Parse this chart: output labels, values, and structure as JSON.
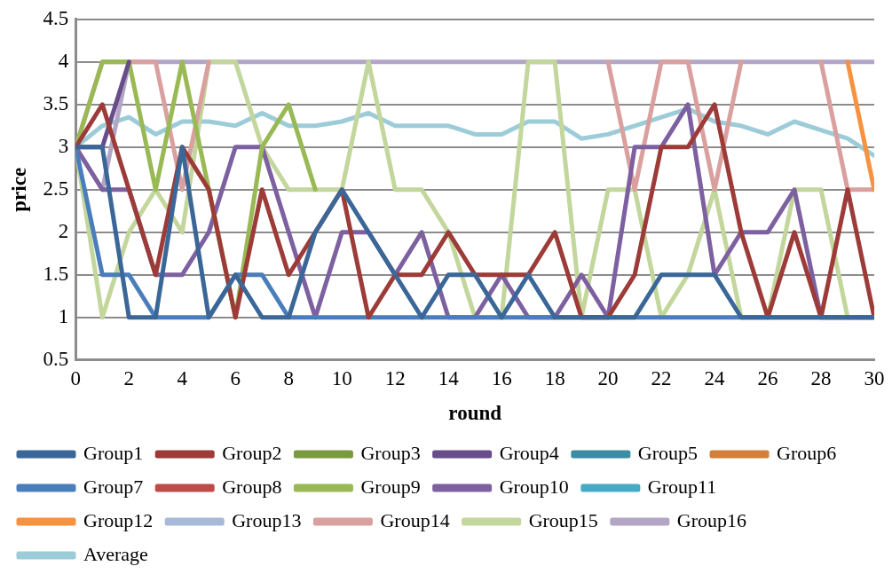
{
  "chart_data": {
    "type": "line",
    "xlabel": "round",
    "ylabel": "price",
    "x": [
      0,
      1,
      2,
      3,
      4,
      5,
      6,
      7,
      8,
      9,
      10,
      11,
      12,
      13,
      14,
      15,
      16,
      17,
      18,
      19,
      20,
      21,
      22,
      23,
      24,
      25,
      26,
      27,
      28,
      29,
      30
    ],
    "xlim": [
      0,
      30
    ],
    "xticks": [
      0,
      2,
      4,
      6,
      8,
      10,
      12,
      14,
      16,
      18,
      20,
      22,
      24,
      26,
      28,
      30
    ],
    "ylim": [
      0.5,
      4.5
    ],
    "yticks": [
      0.5,
      1,
      1.5,
      2,
      2.5,
      3,
      3.5,
      4,
      4.5
    ],
    "grid": "y",
    "legend": "bottom",
    "marker": "none",
    "line_style": "solid",
    "series": [
      {
        "name": "Group1",
        "color": "#3a6798",
        "values": [
          3,
          3,
          1,
          1,
          3,
          1,
          1.5,
          1,
          1,
          2,
          2.5,
          2,
          1.5,
          1,
          1.5,
          1.5,
          1,
          1.5,
          1,
          1,
          1,
          1,
          1.5,
          1.5,
          1.5,
          1,
          1,
          1,
          1,
          1,
          1
        ]
      },
      {
        "name": "Group2",
        "color": "#9c3b38",
        "values": [
          3,
          3.5,
          2.5,
          1.5,
          3,
          2.5,
          1,
          2.5,
          1.5,
          2,
          2.5,
          1,
          1.5,
          1.5,
          2,
          1.5,
          1.5,
          1.5,
          2,
          1,
          1,
          1.5,
          3,
          3,
          3.5,
          2,
          1,
          2,
          1,
          2.5,
          1
        ]
      },
      {
        "name": "Group3",
        "color": "#7a9a3d",
        "values": [
          null,
          null,
          null,
          null,
          null,
          null,
          null,
          null,
          null,
          null,
          null,
          null,
          null,
          null,
          null,
          null,
          null,
          null,
          null,
          null,
          null,
          null,
          null,
          null,
          null,
          null,
          null,
          null,
          null,
          null,
          null
        ]
      },
      {
        "name": "Group4",
        "color": "#674e8a",
        "values": [
          3,
          3,
          4,
          null,
          null,
          null,
          null,
          null,
          null,
          null,
          null,
          null,
          null,
          null,
          null,
          null,
          null,
          null,
          null,
          null,
          null,
          null,
          null,
          null,
          null,
          null,
          null,
          null,
          null,
          null,
          null
        ]
      },
      {
        "name": "Group5",
        "color": "#3c8da3",
        "values": [
          null,
          null,
          null,
          null,
          null,
          null,
          null,
          null,
          null,
          null,
          null,
          null,
          null,
          null,
          null,
          null,
          null,
          null,
          null,
          null,
          null,
          null,
          null,
          null,
          null,
          null,
          null,
          null,
          null,
          null,
          null
        ]
      },
      {
        "name": "Group6",
        "color": "#d3803a",
        "values": [
          null,
          null,
          null,
          null,
          null,
          null,
          null,
          null,
          null,
          null,
          null,
          null,
          null,
          null,
          null,
          null,
          null,
          null,
          null,
          null,
          null,
          null,
          null,
          null,
          null,
          null,
          null,
          null,
          null,
          null,
          null
        ]
      },
      {
        "name": "Group7",
        "color": "#4a7ebb",
        "values": [
          3,
          1.5,
          1.5,
          1,
          1,
          1,
          1.5,
          1.5,
          1,
          1,
          1,
          1,
          1,
          1,
          1,
          1,
          1,
          1,
          1,
          1,
          1,
          1,
          1,
          1,
          1,
          1,
          1,
          1,
          1,
          1,
          1
        ]
      },
      {
        "name": "Group8",
        "color": "#be4b48",
        "values": [
          null,
          null,
          null,
          null,
          null,
          null,
          null,
          null,
          null,
          null,
          null,
          null,
          null,
          null,
          null,
          null,
          null,
          null,
          null,
          null,
          null,
          null,
          null,
          null,
          null,
          null,
          null,
          null,
          null,
          null,
          null
        ]
      },
      {
        "name": "Group9",
        "color": "#98b954",
        "values": [
          3,
          4,
          4,
          2.5,
          4,
          2.5,
          1,
          3,
          3.5,
          2.5,
          null,
          null,
          null,
          null,
          null,
          null,
          null,
          null,
          null,
          null,
          null,
          null,
          null,
          null,
          null,
          null,
          null,
          null,
          null,
          null,
          null
        ]
      },
      {
        "name": "Group10",
        "color": "#7d60a0",
        "values": [
          3,
          2.5,
          2.5,
          1.5,
          1.5,
          2,
          3,
          3,
          2,
          1,
          2,
          2,
          1.5,
          2,
          1,
          1,
          1.5,
          1,
          1,
          1.5,
          1,
          3,
          3,
          3.5,
          1.5,
          2,
          2,
          2.5,
          1,
          1,
          1
        ]
      },
      {
        "name": "Group11",
        "color": "#46aac5",
        "values": [
          null,
          null,
          null,
          null,
          null,
          null,
          null,
          null,
          null,
          null,
          null,
          null,
          null,
          null,
          null,
          null,
          null,
          null,
          null,
          null,
          null,
          null,
          null,
          null,
          null,
          null,
          null,
          null,
          null,
          null,
          null
        ]
      },
      {
        "name": "Group12",
        "color": "#f69240",
        "values": [
          null,
          null,
          null,
          null,
          null,
          null,
          null,
          null,
          null,
          null,
          null,
          null,
          null,
          null,
          null,
          null,
          null,
          null,
          null,
          null,
          null,
          null,
          null,
          null,
          null,
          null,
          null,
          null,
          null,
          4,
          2.5
        ]
      },
      {
        "name": "Group13",
        "color": "#a7b9d8",
        "values": [
          null,
          null,
          null,
          null,
          null,
          null,
          null,
          null,
          null,
          null,
          null,
          null,
          null,
          null,
          null,
          null,
          null,
          null,
          null,
          null,
          null,
          null,
          null,
          null,
          null,
          null,
          null,
          null,
          null,
          null,
          null
        ]
      },
      {
        "name": "Group14",
        "color": "#d9a09f",
        "values": [
          3,
          4,
          4,
          4,
          2.5,
          4,
          null,
          null,
          null,
          null,
          null,
          null,
          null,
          null,
          null,
          null,
          null,
          null,
          null,
          null,
          4,
          2.5,
          4,
          4,
          2.5,
          4,
          null,
          null,
          4,
          2.5,
          2.5
        ]
      },
      {
        "name": "Group15",
        "color": "#c3d69b",
        "values": [
          3,
          1,
          2,
          2.5,
          2,
          4,
          4,
          3,
          2.5,
          2.5,
          2.5,
          4,
          2.5,
          2.5,
          2,
          1,
          1,
          4,
          4,
          1,
          2.5,
          2.5,
          1,
          1.5,
          2.5,
          1,
          1,
          2.5,
          2.5,
          1,
          1
        ]
      },
      {
        "name": "Group16",
        "color": "#b3a5c6",
        "values": [
          3,
          2.5,
          4,
          4,
          4,
          4,
          4,
          4,
          4,
          4,
          4,
          4,
          4,
          4,
          4,
          4,
          4,
          4,
          4,
          4,
          4,
          4,
          4,
          4,
          4,
          4,
          4,
          4,
          4,
          4,
          4
        ]
      },
      {
        "name": "Average",
        "color": "#9dccd9",
        "values": [
          3,
          3.25,
          3.35,
          3.15,
          3.3,
          3.3,
          3.25,
          3.4,
          3.25,
          3.25,
          3.3,
          3.4,
          3.25,
          3.25,
          3.25,
          3.15,
          3.15,
          3.3,
          3.3,
          3.1,
          3.15,
          3.25,
          3.35,
          3.45,
          3.3,
          3.25,
          3.15,
          3.3,
          3.2,
          3.1,
          2.9
        ]
      }
    ]
  }
}
